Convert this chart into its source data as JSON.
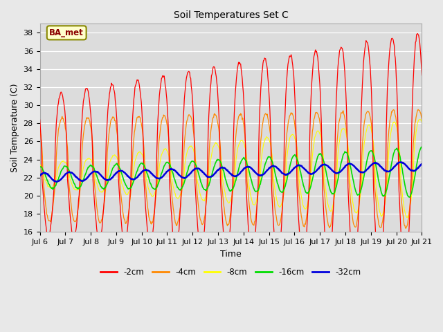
{
  "title": "Soil Temperatures Set C",
  "xlabel": "Time",
  "ylabel": "Soil Temperature (C)",
  "ylim": [
    16,
    39
  ],
  "yticks": [
    16,
    18,
    20,
    22,
    24,
    26,
    28,
    30,
    32,
    34,
    36,
    38
  ],
  "colors": {
    "-2cm": "#ff0000",
    "-4cm": "#ff8800",
    "-8cm": "#ffff00",
    "-16cm": "#00dd00",
    "-32cm": "#0000dd"
  },
  "fig_width": 6.4,
  "fig_height": 4.8,
  "dpi": 100
}
